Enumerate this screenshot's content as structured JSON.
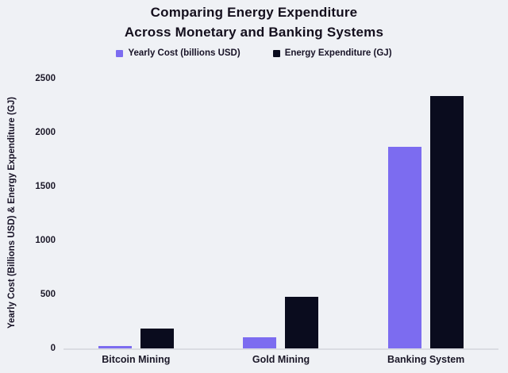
{
  "chart_data": {
    "type": "bar",
    "title_line1": "Comparing Energy Expenditure",
    "title_line2": "Across Monetary and Banking Systems",
    "categories": [
      "Bitcoin Mining",
      "Gold Mining",
      "Banking System"
    ],
    "series": [
      {
        "key": "yearly-cost",
        "name": "Yearly Cost (billions USD)",
        "color": "#7c6cf0",
        "values": [
          4.5,
          105,
          1870
        ]
      },
      {
        "key": "energy-expenditure",
        "name": "Energy Expenditure (GJ)",
        "color": "#0a0c1e",
        "values": [
          183,
          475,
          2340
        ]
      }
    ],
    "xlabel": "",
    "ylabel": "Yearly Cost (Billions USD) & Energy Expenditure (GJ)",
    "ylim": [
      0,
      2500
    ],
    "yticks": [
      0,
      500,
      1000,
      1500,
      2000,
      2500
    ],
    "grid": false,
    "legend_position": "top-center"
  },
  "colors": {
    "background": "#eff1f5",
    "text": "#16121f",
    "axis_line": "#dadce2"
  }
}
